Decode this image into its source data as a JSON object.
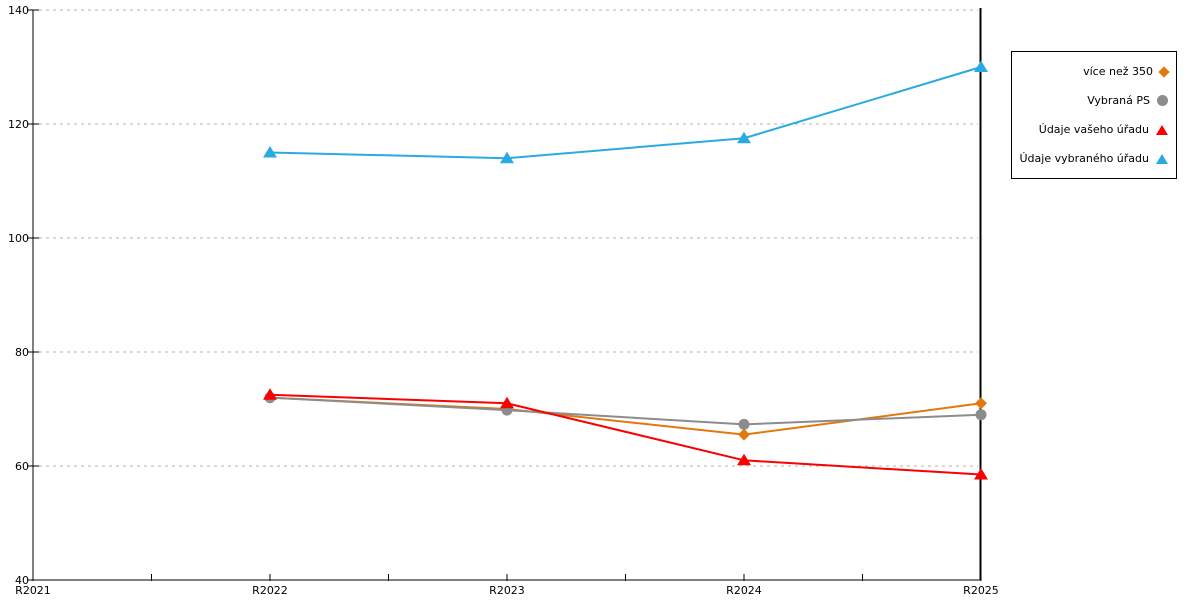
{
  "chart": {
    "background": "#FFFFFF",
    "axis_color": "#000000",
    "grid_color": "#B3B3B3",
    "text_color": "#000000"
  },
  "chart_data": {
    "type": "line",
    "title": "",
    "xlabel": "",
    "ylabel": "",
    "categories": [
      "R2021",
      "R2022",
      "R2023",
      "R2024",
      "R2025"
    ],
    "y_ticks": [
      40,
      60,
      80,
      100,
      120,
      140
    ],
    "ylim": [
      40,
      140
    ],
    "grid": "horizontal-dotted",
    "legend_position": "outside-right",
    "series": [
      {
        "name": "více než 350",
        "color": "#E2790F",
        "marker": "diamond",
        "values": [
          null,
          72,
          70,
          65.5,
          71
        ]
      },
      {
        "name": "Vybraná PS",
        "color": "#8C8C8C",
        "marker": "circle",
        "values": [
          null,
          72,
          69.8,
          67.3,
          69
        ]
      },
      {
        "name": "Údaje vašeho úřadu",
        "color": "#FA0000",
        "marker": "triangle",
        "values": [
          null,
          72.5,
          71,
          61,
          58.5
        ]
      },
      {
        "name": "Údaje vybraného úřadu",
        "color": "#29ABE2",
        "marker": "triangle",
        "values": [
          null,
          115,
          114,
          117.5,
          130
        ]
      }
    ]
  }
}
